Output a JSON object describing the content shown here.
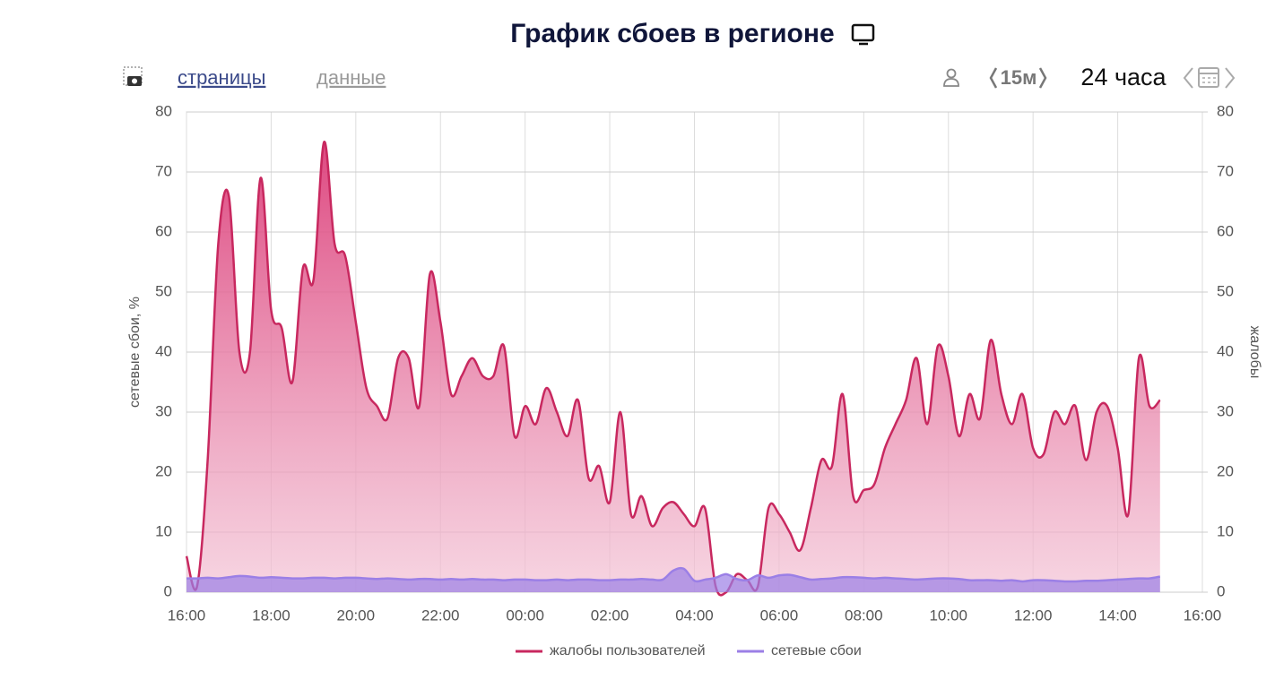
{
  "title": "График сбоев в регионе",
  "toolbar": {
    "tabs": [
      "страницы",
      "данные"
    ],
    "interval": "15м",
    "range": "24 часа"
  },
  "chart_data": {
    "type": "area",
    "x": [
      0,
      0.25,
      0.5,
      0.75,
      1,
      1.25,
      1.5,
      1.75,
      2,
      2.25,
      2.5,
      2.75,
      3,
      3.25,
      3.5,
      3.75,
      4,
      4.25,
      4.5,
      4.75,
      5,
      5.25,
      5.5,
      5.75,
      6,
      6.25,
      6.5,
      6.75,
      7,
      7.25,
      7.5,
      7.75,
      8,
      8.25,
      8.5,
      8.75,
      9,
      9.25,
      9.5,
      9.75,
      10,
      10.25,
      10.5,
      10.75,
      11,
      11.25,
      11.5,
      11.75,
      12,
      12.25,
      12.5,
      12.75,
      13,
      13.25,
      13.5,
      13.75,
      14,
      14.25,
      14.5,
      14.75,
      15,
      15.25,
      15.5,
      15.75,
      16,
      16.25,
      16.5,
      16.75,
      17,
      17.25,
      17.5,
      17.75,
      18,
      18.25,
      18.5,
      18.75,
      19,
      19.25,
      19.5,
      19.75,
      20,
      20.25,
      20.5,
      20.75,
      21,
      21.25,
      21.5,
      21.75,
      22,
      22.25,
      22.5,
      22.75,
      23
    ],
    "xlim": [
      0,
      24
    ],
    "xticks": [
      {
        "value": 0,
        "label": "16:00"
      },
      {
        "value": 2,
        "label": "18:00"
      },
      {
        "value": 4,
        "label": "20:00"
      },
      {
        "value": 6,
        "label": "22:00"
      },
      {
        "value": 8,
        "label": "00:00"
      },
      {
        "value": 10,
        "label": "02:00"
      },
      {
        "value": 12,
        "label": "04:00"
      },
      {
        "value": 14,
        "label": "06:00"
      },
      {
        "value": 16,
        "label": "08:00"
      },
      {
        "value": 18,
        "label": "10:00"
      },
      {
        "value": 20,
        "label": "12:00"
      },
      {
        "value": 22,
        "label": "14:00"
      },
      {
        "value": 24,
        "label": "16:00"
      }
    ],
    "ylim": [
      0,
      80
    ],
    "yticks": [
      0,
      10,
      20,
      30,
      40,
      50,
      60,
      70,
      80
    ],
    "y2lim": [
      0,
      80
    ],
    "y2ticks": [
      0,
      10,
      20,
      30,
      40,
      50,
      60,
      70,
      80
    ],
    "ylabel": "сетевые сбои, %",
    "y2label": "жалобы",
    "grid": true,
    "legend": "bottom",
    "series": [
      {
        "name": "жалобы пользователей",
        "color": "#c8285f",
        "axis": "y2",
        "values": [
          6,
          1,
          22,
          58,
          66,
          40,
          40,
          69,
          47,
          44,
          35,
          54,
          52,
          75,
          58,
          56,
          45,
          34,
          31,
          29,
          39,
          39,
          31,
          53,
          45,
          33,
          36,
          39,
          36,
          36,
          41,
          26,
          31,
          28,
          34,
          30,
          26,
          32,
          19,
          21,
          15,
          30,
          13,
          16,
          11,
          14,
          15,
          13,
          11,
          14,
          1,
          0,
          3,
          2,
          1,
          14,
          13,
          10,
          7,
          14,
          22,
          21,
          33,
          16,
          17,
          18,
          24,
          28,
          32,
          39,
          28,
          41,
          36,
          26,
          33,
          29,
          42,
          33,
          28,
          33,
          24,
          23,
          30,
          28,
          31,
          22,
          30,
          31,
          24,
          13,
          39,
          31,
          32
        ]
      },
      {
        "name": "сетевые сбои",
        "color": "#9b7fe6",
        "values": [
          2.3,
          2.3,
          2.4,
          2.3,
          2.5,
          2.7,
          2.6,
          2.4,
          2.5,
          2.4,
          2.3,
          2.3,
          2.4,
          2.4,
          2.3,
          2.4,
          2.4,
          2.3,
          2.2,
          2.3,
          2.2,
          2.1,
          2.2,
          2.2,
          2.1,
          2.2,
          2.1,
          2.2,
          2.1,
          2.1,
          2.0,
          2.1,
          2.1,
          2.0,
          2.0,
          2.1,
          2.0,
          2.1,
          2.1,
          2.0,
          2.0,
          2.1,
          2.1,
          2.2,
          2.1,
          2.1,
          3.6,
          3.9,
          1.9,
          2.1,
          2.4,
          3.0,
          2.2,
          2.0,
          2.8,
          2.4,
          2.8,
          2.9,
          2.5,
          2.1,
          2.2,
          2.3,
          2.5,
          2.5,
          2.4,
          2.3,
          2.4,
          2.3,
          2.2,
          2.1,
          2.2,
          2.3,
          2.3,
          2.2,
          2.0,
          2.0,
          2.0,
          1.9,
          2.0,
          1.8,
          2.0,
          2.0,
          1.9,
          1.8,
          1.8,
          1.9,
          1.9,
          2.0,
          2.1,
          2.2,
          2.3,
          2.3,
          2.6
        ]
      }
    ]
  }
}
